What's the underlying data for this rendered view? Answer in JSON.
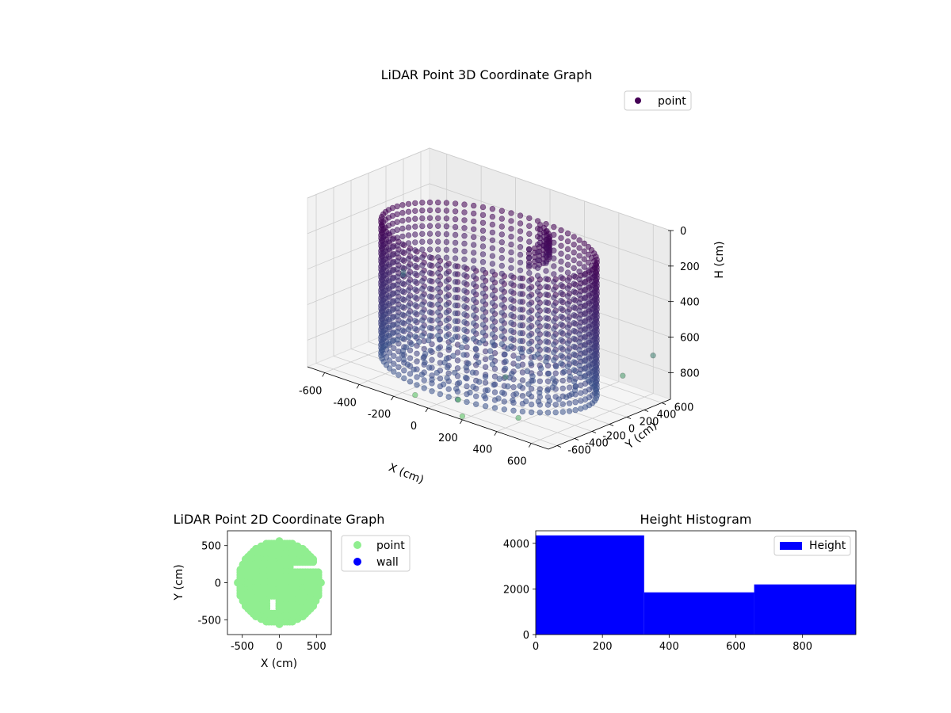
{
  "colors": {
    "point3d_dark": "#440154",
    "point3d_mid": "#3b528b",
    "point3d_light": "#5ec962",
    "point2d": "#90ee90",
    "wall": "#0000ff",
    "histogram": "#0000ff",
    "pane": "#f2f2f2",
    "grid": "#cccccc"
  },
  "chart_data": [
    {
      "type": "scatter3d",
      "title": "LiDAR Point 3D Coordinate Graph",
      "xlabel": "X (cm)",
      "ylabel": "Y (cm)",
      "zlabel": "H (cm)",
      "xlim": [
        -700,
        700
      ],
      "ylim": [
        -700,
        700
      ],
      "zlim": [
        0,
        950
      ],
      "z_inverted": true,
      "xticks": [
        -600,
        -400,
        -200,
        0,
        200,
        400,
        600
      ],
      "yticks": [
        -600,
        -400,
        -200,
        0,
        200,
        400,
        600
      ],
      "zticks": [
        0,
        200,
        400,
        600,
        800
      ],
      "legend": {
        "entries": [
          "point"
        ],
        "placement": "top-right"
      },
      "cylinder": {
        "radius": 560,
        "h_top": 150,
        "h_bottom": 900
      },
      "outliers": [
        {
          "x": -650,
          "y": 300,
          "h": 600
        },
        {
          "x": -600,
          "y": 200,
          "h": 580
        },
        {
          "x": 350,
          "y": -500,
          "h": 700
        },
        {
          "x": 500,
          "y": -650,
          "h": 850
        },
        {
          "x": 100,
          "y": -550,
          "h": 900
        },
        {
          "x": -100,
          "y": -650,
          "h": 920
        },
        {
          "x": 200,
          "y": -700,
          "h": 930
        },
        {
          "x": 600,
          "y": 350,
          "h": 780
        },
        {
          "x": 650,
          "y": 600,
          "h": 700
        }
      ]
    },
    {
      "type": "scatter",
      "title": "LiDAR Point 2D Coordinate Graph",
      "xlabel": "X (cm)",
      "ylabel": "Y (cm)",
      "xlim": [
        -700,
        700
      ],
      "ylim": [
        -700,
        700
      ],
      "xticks": [
        -500,
        0,
        500
      ],
      "yticks": [
        -500,
        0,
        500
      ],
      "legend": {
        "entries": [
          "point",
          "wall"
        ],
        "placement": "outside-right"
      },
      "point_region": {
        "shape": "disk",
        "radius": 560
      }
    },
    {
      "type": "bar",
      "title": "Height Histogram",
      "bins": [
        [
          0,
          325
        ],
        [
          325,
          655
        ],
        [
          655,
          960
        ]
      ],
      "values": [
        4350,
        1850,
        2200
      ],
      "xlim": [
        0,
        960
      ],
      "ylim": [
        0,
        4550
      ],
      "xticks": [
        0,
        200,
        400,
        600,
        800
      ],
      "yticks": [
        0,
        2000,
        4000
      ],
      "legend": {
        "entries": [
          "Height"
        ],
        "placement": "top-right"
      }
    }
  ]
}
